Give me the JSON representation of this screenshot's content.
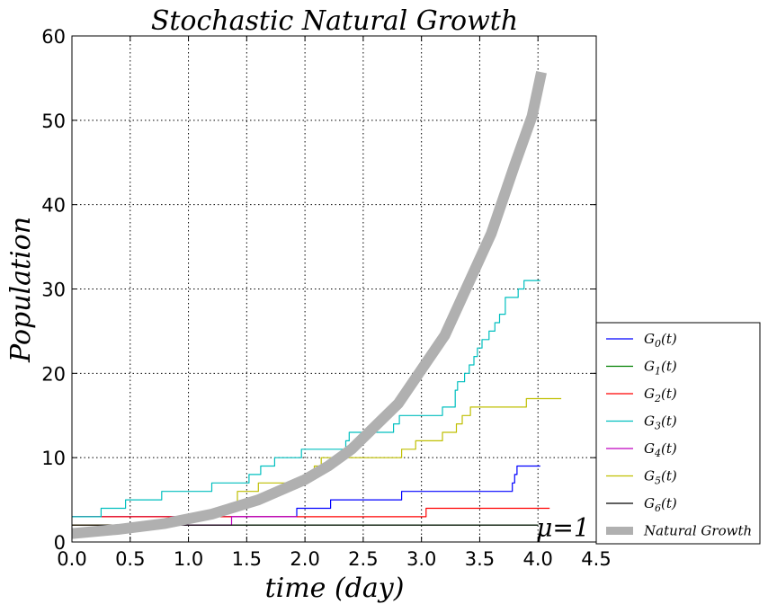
{
  "chart_data": {
    "type": "line",
    "title": "Stochastic Natural Growth",
    "xlabel": "time (day)",
    "ylabel": "Population",
    "xlim": [
      0,
      4.5
    ],
    "ylim": [
      0,
      60
    ],
    "xticks": [
      "0.0",
      "0.5",
      "1.0",
      "1.5",
      "2.0",
      "2.5",
      "3.0",
      "3.5",
      "4.0",
      "4.5"
    ],
    "yticks": [
      "0",
      "10",
      "20",
      "30",
      "40",
      "50",
      "60"
    ],
    "grid": true,
    "legend_position": "lower-right-outside",
    "annotation": {
      "text": "μ=1",
      "x": 4.0,
      "y": 0.5
    },
    "series": [
      {
        "name": "G0(t)",
        "color": "#0000ff",
        "step": true,
        "x": [
          0,
          1.93,
          2.22,
          2.83,
          3.78,
          3.8,
          3.82,
          4.02
        ],
        "y": [
          3,
          4,
          5,
          6,
          7,
          8,
          9,
          9
        ]
      },
      {
        "name": "G1(t)",
        "color": "#008000",
        "step": true,
        "x": [
          0,
          4.0
        ],
        "y": [
          2,
          2
        ]
      },
      {
        "name": "G2(t)",
        "color": "#ff0000",
        "step": true,
        "x": [
          0,
          3.04,
          4.1
        ],
        "y": [
          3,
          4,
          4
        ]
      },
      {
        "name": "G3(t)",
        "color": "#00bfbf",
        "step": true,
        "x": [
          0,
          0.25,
          0.46,
          0.77,
          1.2,
          1.52,
          1.62,
          1.74,
          1.84,
          1.97,
          2.03,
          2.35,
          2.38,
          2.72,
          2.76,
          2.81,
          3.18,
          3.29,
          3.31,
          3.37,
          3.41,
          3.45,
          3.48,
          3.52,
          3.58,
          3.63,
          3.67,
          3.72,
          3.83,
          3.88,
          4.02
        ],
        "y": [
          3,
          4,
          5,
          6,
          7,
          8,
          9,
          10,
          10,
          11,
          11,
          12,
          13,
          13,
          14,
          15,
          16,
          18,
          19,
          20,
          21,
          22,
          23,
          24,
          25,
          26,
          27,
          29,
          30,
          31,
          31
        ]
      },
      {
        "name": "G4(t)",
        "color": "#bf00bf",
        "step": true,
        "x": [
          0,
          1.37,
          1.93
        ],
        "y": [
          2,
          3,
          3
        ]
      },
      {
        "name": "G5(t)",
        "color": "#bfbf00",
        "step": true,
        "x": [
          0,
          0.9,
          1.27,
          1.42,
          1.6,
          2.03,
          2.08,
          2.14,
          2.83,
          2.95,
          3.18,
          3.3,
          3.35,
          3.42,
          3.5,
          3.9,
          4.2
        ],
        "y": [
          2,
          3,
          4,
          6,
          7,
          8,
          9,
          10,
          11,
          12,
          13,
          14,
          15,
          16,
          16,
          17,
          17
        ]
      },
      {
        "name": "G6(t)",
        "color": "#000000",
        "step": true,
        "x": [
          0,
          4.0
        ],
        "y": [
          2,
          2
        ]
      },
      {
        "name": "Natural Growth",
        "color": "#b0b0b0",
        "step": false,
        "width": 12,
        "x": [
          0,
          0.4,
          0.8,
          1.2,
          1.6,
          2.0,
          2.2,
          2.4,
          2.8,
          3.2,
          3.6,
          3.8,
          3.95,
          4.03
        ],
        "y": [
          1,
          1.5,
          2.2,
          3.3,
          5,
          7.4,
          9,
          11,
          16.4,
          24.5,
          36.6,
          44.7,
          50.5,
          55.7
        ]
      }
    ],
    "legend_labels": [
      {
        "base": "G",
        "sub": "0",
        "tail": "(t)"
      },
      {
        "base": "G",
        "sub": "1",
        "tail": "(t)"
      },
      {
        "base": "G",
        "sub": "2",
        "tail": "(t)"
      },
      {
        "base": "G",
        "sub": "3",
        "tail": "(t)"
      },
      {
        "base": "G",
        "sub": "4",
        "tail": "(t)"
      },
      {
        "base": "G",
        "sub": "5",
        "tail": "(t)"
      },
      {
        "base": "G",
        "sub": "6",
        "tail": "(t)"
      },
      {
        "base": "Natural Growth",
        "sub": "",
        "tail": ""
      }
    ]
  }
}
